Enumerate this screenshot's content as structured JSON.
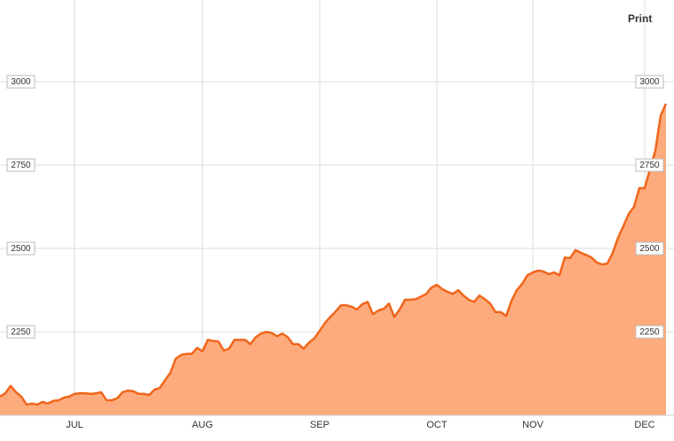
{
  "toolbar": {
    "print": "Print"
  },
  "chart_data": {
    "type": "area",
    "categories": [
      null,
      null,
      null,
      null,
      null,
      null,
      null,
      null,
      null,
      null,
      null,
      null,
      null,
      null,
      "JUL",
      null,
      null,
      null,
      null,
      null,
      null,
      null,
      null,
      null,
      null,
      null,
      null,
      null,
      null,
      null,
      null,
      null,
      null,
      null,
      null,
      null,
      null,
      null,
      "AUG",
      null,
      null,
      null,
      null,
      null,
      null,
      null,
      null,
      null,
      null,
      null,
      null,
      null,
      null,
      null,
      null,
      null,
      null,
      null,
      null,
      null,
      "SEP",
      null,
      null,
      null,
      null,
      null,
      null,
      null,
      null,
      null,
      null,
      null,
      null,
      null,
      null,
      null,
      null,
      null,
      null,
      null,
      null,
      null,
      "OCT",
      null,
      null,
      null,
      null,
      null,
      null,
      null,
      null,
      null,
      null,
      null,
      null,
      null,
      null,
      null,
      null,
      null,
      "NOV",
      null,
      null,
      null,
      null,
      null,
      null,
      null,
      null,
      null,
      null,
      null,
      null,
      null,
      null,
      null,
      null,
      null,
      null,
      null,
      null,
      "DEC",
      null,
      null,
      null,
      null
    ],
    "values": [
      2056,
      2066,
      2088,
      2069,
      2056,
      2032,
      2035,
      2032,
      2040,
      2035,
      2043,
      2045,
      2053,
      2056,
      2064,
      2066,
      2066,
      2064,
      2066,
      2069,
      2045,
      2045,
      2051,
      2069,
      2074,
      2072,
      2064,
      2064,
      2061,
      2077,
      2082,
      2106,
      2128,
      2170,
      2181,
      2184,
      2184,
      2202,
      2192,
      2226,
      2223,
      2221,
      2194,
      2200,
      2226,
      2226,
      2226,
      2213,
      2234,
      2245,
      2250,
      2247,
      2237,
      2245,
      2234,
      2213,
      2213,
      2200,
      2218,
      2231,
      2253,
      2277,
      2295,
      2311,
      2330,
      2330,
      2325,
      2317,
      2333,
      2340,
      2303,
      2314,
      2319,
      2335,
      2295,
      2317,
      2346,
      2346,
      2348,
      2356,
      2364,
      2383,
      2391,
      2378,
      2370,
      2364,
      2375,
      2359,
      2346,
      2340,
      2359,
      2348,
      2335,
      2309,
      2309,
      2298,
      2343,
      2375,
      2394,
      2420,
      2428,
      2434,
      2431,
      2423,
      2428,
      2420,
      2473,
      2471,
      2495,
      2487,
      2481,
      2473,
      2458,
      2452,
      2455,
      2487,
      2532,
      2567,
      2604,
      2625,
      2681,
      2681,
      2739,
      2793,
      2899,
      2934
    ],
    "color": "#f0661b",
    "fill": "#fdab7c",
    "ylim": [
      2000,
      3245
    ],
    "yticks": [
      2250,
      2500,
      2750,
      3000
    ],
    "grid": true
  }
}
